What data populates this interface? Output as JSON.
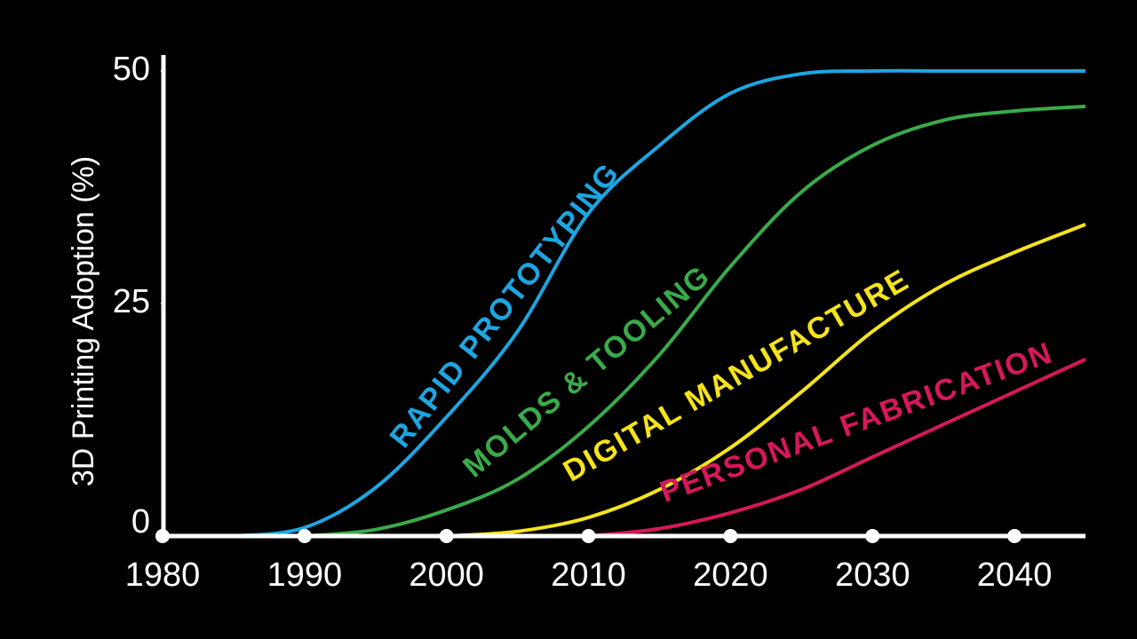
{
  "chart_data": {
    "type": "line",
    "y_label": "3D Printing Adoption (%)",
    "x": [
      1980,
      1985,
      1990,
      1995,
      2000,
      2005,
      2010,
      2015,
      2020,
      2025,
      2030,
      2035,
      2040,
      2045
    ],
    "xlim": [
      1980,
      2045
    ],
    "xticks": [
      1980,
      1990,
      2000,
      2010,
      2020,
      2030,
      2040
    ],
    "ylim": [
      0,
      50
    ],
    "yticks": [
      0,
      25,
      50
    ],
    "series": [
      {
        "name": "RAPID PROTOTYPING",
        "color": "#1ea5e0",
        "values": [
          null,
          0,
          0.9,
          5.2,
          12.8,
          22,
          34.7,
          42,
          47.6,
          49.7,
          50,
          50,
          50,
          50
        ]
      },
      {
        "name": "MOLDS & TOOLING",
        "color": "#3aaa4a",
        "values": [
          null,
          null,
          0,
          0.7,
          2.8,
          6.1,
          11.8,
          19.5,
          29,
          37,
          42,
          44.7,
          45.7,
          46.2
        ]
      },
      {
        "name": "DIGITAL MANUFACTURE",
        "color": "#f5e31c",
        "values": [
          null,
          null,
          null,
          null,
          0,
          0.5,
          2,
          5,
          9.5,
          15.5,
          22,
          27,
          30.5,
          33.5
        ]
      },
      {
        "name": "PERSONAL FABRICATION",
        "color": "#d6185a",
        "values": [
          null,
          null,
          null,
          null,
          null,
          null,
          0,
          0.8,
          2.5,
          5,
          8.5,
          12,
          15.5,
          19
        ]
      }
    ]
  }
}
